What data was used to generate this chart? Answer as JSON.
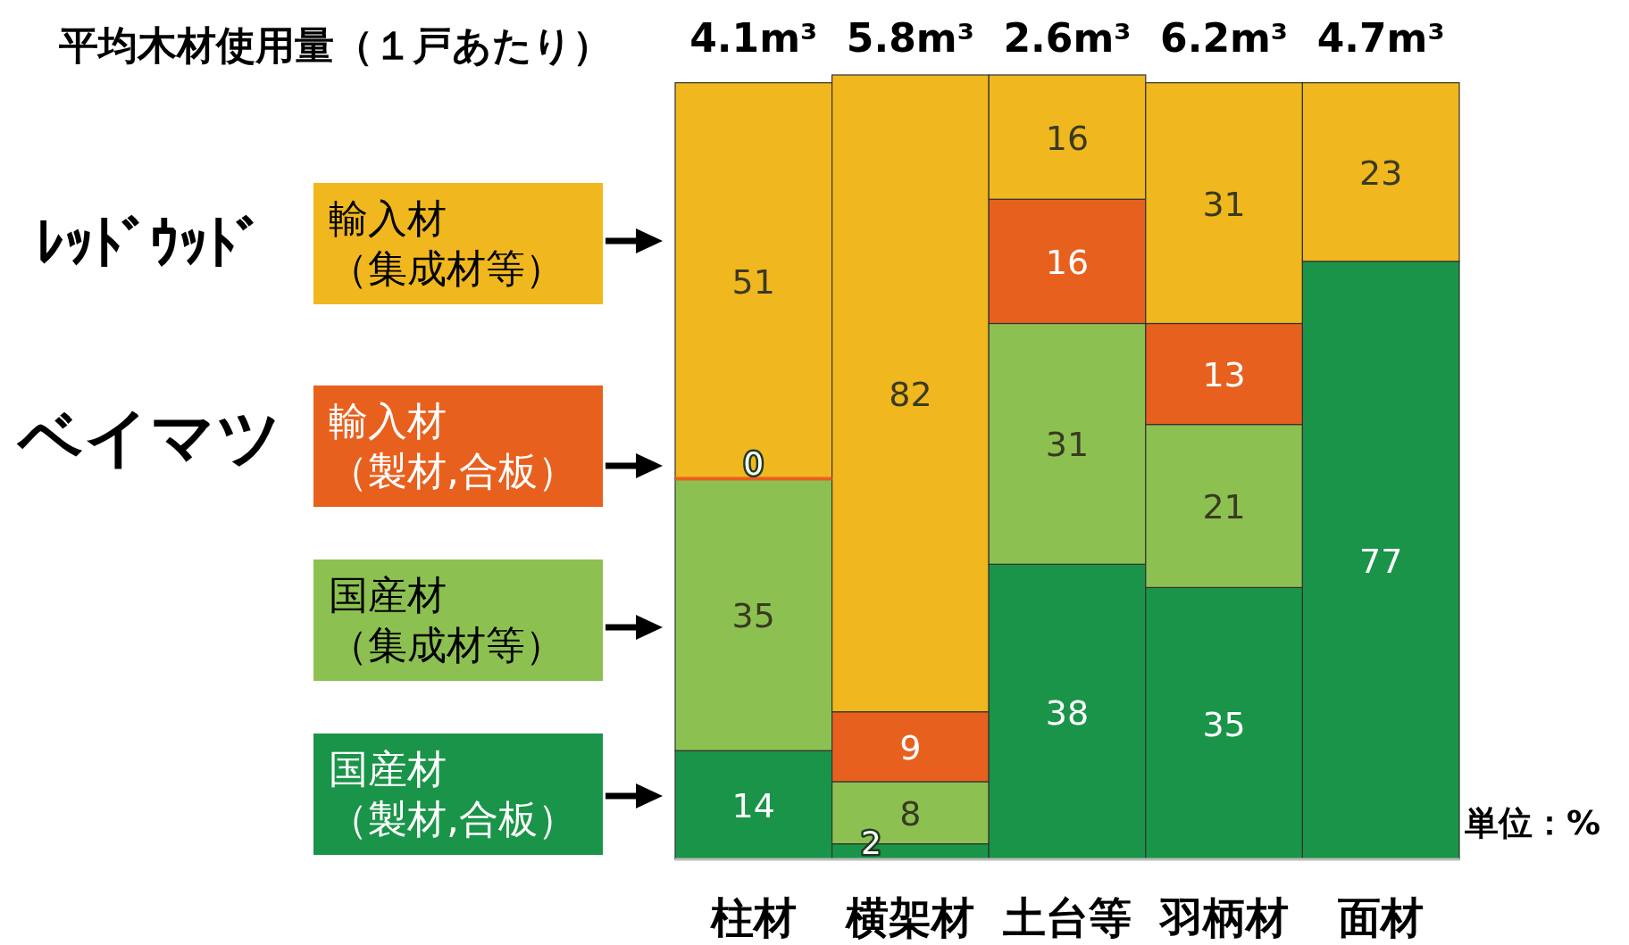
{
  "chart_data": {
    "type": "bar",
    "stacked": true,
    "data_labels": true,
    "legend": "left",
    "categories": [
      "柱材",
      "横架材",
      "土台等",
      "羽柄材",
      "面材"
    ],
    "series": [
      {
        "name": "国産材（製材,合板）",
        "color": "#1a9448",
        "values": [
          14,
          2,
          38,
          35,
          77
        ]
      },
      {
        "name": "国産材（集成材等）",
        "color": "#8cc152",
        "values": [
          35,
          8,
          31,
          21,
          null
        ]
      },
      {
        "name": "輸入材（製材,合板）",
        "color": "#e8601e",
        "values": [
          0,
          9,
          16,
          13,
          null
        ],
        "value_labels": [
          "0",
          "9",
          "16",
          "13",
          null
        ]
      },
      {
        "name": "輸入材（集成材等）",
        "color": "#f0b81e",
        "values": [
          51,
          82,
          16,
          31,
          23
        ]
      }
    ],
    "annotations": [
      "平均木材使用量（１戸あたり）",
      "4.1m³",
      "5.8m³",
      "2.6m³",
      "6.2m³",
      "4.7m³",
      "ﾚｯﾄﾞｳｯﾄﾞ",
      "ベイマツ",
      "単位：%"
    ]
  }
}
